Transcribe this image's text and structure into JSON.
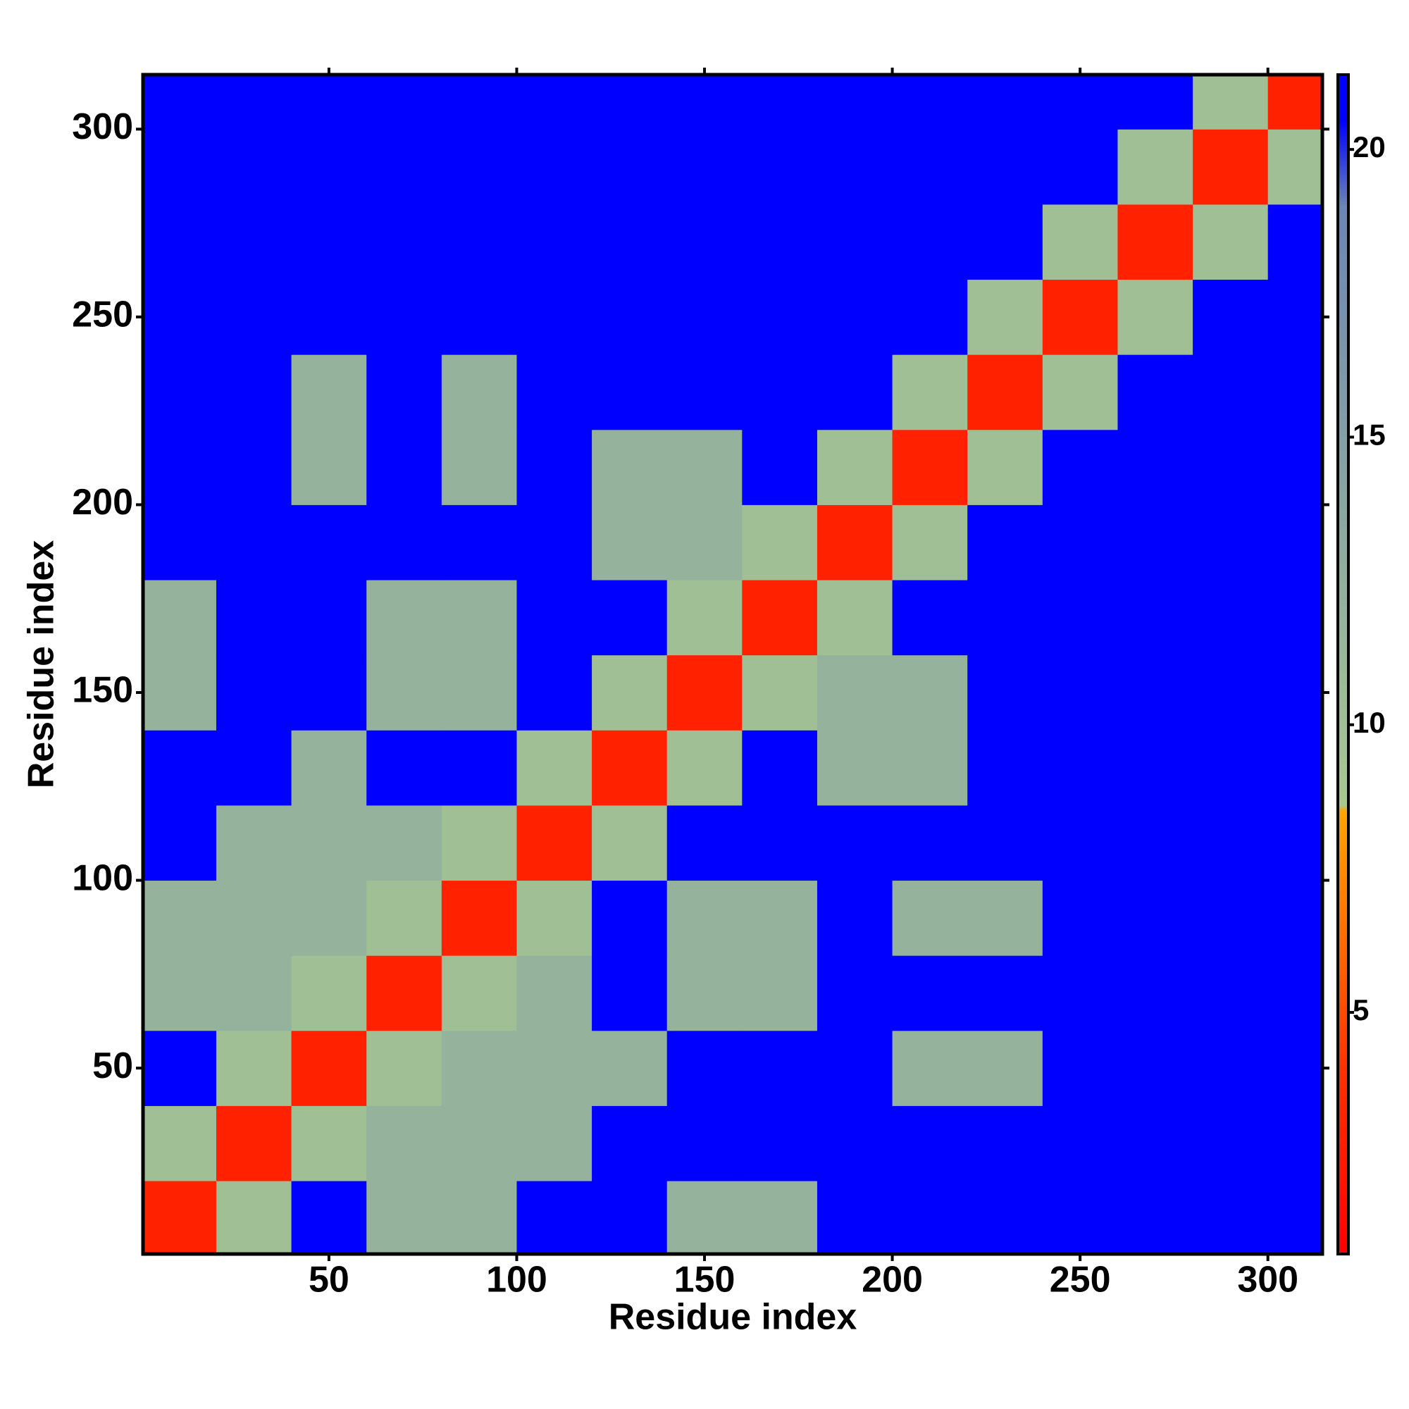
{
  "chart_data": {
    "type": "heatmap",
    "x_label": "Residue index",
    "y_label": "Residue index",
    "xbins": [
      0.5,
      20,
      40,
      60,
      80,
      100,
      120,
      140,
      160,
      180,
      200,
      220,
      240,
      260,
      280,
      300,
      314.5
    ],
    "ybins": [
      0.5,
      20,
      40,
      60,
      80,
      100,
      120,
      140,
      160,
      180,
      200,
      220,
      240,
      260,
      280,
      300,
      314.5
    ],
    "values": [
      [
        3,
        10,
        21,
        12,
        12,
        21,
        21,
        12,
        12,
        21,
        21,
        21,
        21,
        21,
        21,
        21
      ],
      [
        10,
        3,
        10,
        12,
        12,
        12,
        21,
        21,
        21,
        21,
        21,
        21,
        21,
        21,
        21,
        21
      ],
      [
        21,
        10,
        3,
        10,
        12,
        12,
        12,
        21,
        21,
        21,
        12,
        12,
        21,
        21,
        21,
        21
      ],
      [
        12,
        12,
        10,
        3,
        10,
        12,
        21,
        12,
        12,
        21,
        21,
        21,
        21,
        21,
        21,
        21
      ],
      [
        12,
        12,
        12,
        10,
        3,
        10,
        21,
        12,
        12,
        21,
        12,
        12,
        21,
        21,
        21,
        21
      ],
      [
        21,
        12,
        12,
        12,
        10,
        3,
        10,
        21,
        21,
        21,
        21,
        21,
        21,
        21,
        21,
        21
      ],
      [
        21,
        21,
        12,
        21,
        21,
        10,
        3,
        10,
        21,
        12,
        12,
        21,
        21,
        21,
        21,
        21
      ],
      [
        12,
        21,
        21,
        12,
        12,
        21,
        10,
        3,
        10,
        12,
        12,
        21,
        21,
        21,
        21,
        21
      ],
      [
        12,
        21,
        21,
        12,
        12,
        21,
        21,
        10,
        3,
        10,
        21,
        21,
        21,
        21,
        21,
        21
      ],
      [
        21,
        21,
        21,
        21,
        21,
        21,
        12,
        12,
        10,
        3,
        10,
        21,
        21,
        21,
        21,
        21
      ],
      [
        21,
        21,
        12,
        21,
        12,
        21,
        12,
        12,
        21,
        10,
        3,
        10,
        21,
        21,
        21,
        21
      ],
      [
        21,
        21,
        12,
        21,
        12,
        21,
        21,
        21,
        21,
        21,
        10,
        3,
        10,
        21,
        21,
        21
      ],
      [
        21,
        21,
        21,
        21,
        21,
        21,
        21,
        21,
        21,
        21,
        21,
        10,
        3,
        10,
        21,
        21
      ],
      [
        21,
        21,
        21,
        21,
        21,
        21,
        21,
        21,
        21,
        21,
        21,
        21,
        10,
        3,
        10,
        21
      ],
      [
        21,
        21,
        21,
        21,
        21,
        21,
        21,
        21,
        21,
        21,
        21,
        21,
        21,
        10,
        3,
        10
      ],
      [
        21,
        21,
        21,
        21,
        21,
        21,
        21,
        21,
        21,
        21,
        21,
        21,
        21,
        21,
        10,
        3
      ]
    ],
    "xlim": [
      0.5,
      314.5
    ],
    "ylim": [
      0.5,
      314.5
    ],
    "xticks": [
      50,
      100,
      150,
      200,
      250,
      300
    ],
    "yticks": [
      50,
      100,
      150,
      200,
      250,
      300
    ],
    "clim": [
      0.8,
      21.3
    ],
    "cticks": [
      5,
      10,
      15,
      20
    ],
    "colorscale": [
      [
        0.8,
        "#ff0000"
      ],
      [
        4,
        "#ff3000"
      ],
      [
        8.5,
        "#ffa500"
      ],
      [
        8.6,
        "#a8c890"
      ],
      [
        19,
        "#6a86b4"
      ],
      [
        20.5,
        "#0000ff"
      ]
    ]
  }
}
